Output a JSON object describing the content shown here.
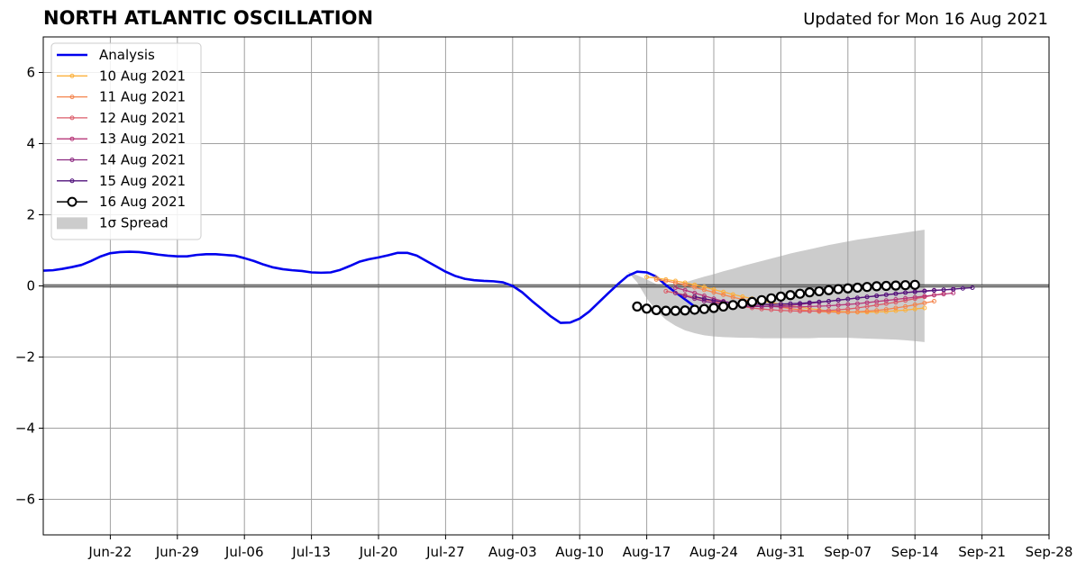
{
  "chart_data": {
    "type": "line",
    "title": "NORTH ATLANTIC OSCILLATION",
    "subtitle": "Updated for Mon 16 Aug 2021",
    "xlabel": "",
    "ylabel": "",
    "x_start": "2021-06-15",
    "x_end": "2021-09-28",
    "ylim": [
      -7,
      7
    ],
    "yticks": [
      -6,
      -4,
      -2,
      0,
      2,
      4,
      6
    ],
    "ytick_labels": [
      "−6",
      "−4",
      "−2",
      "0",
      "2",
      "4",
      "6"
    ],
    "xticks": [
      "2021-06-22",
      "2021-06-29",
      "2021-07-06",
      "2021-07-13",
      "2021-07-20",
      "2021-07-27",
      "2021-08-03",
      "2021-08-10",
      "2021-08-17",
      "2021-08-24",
      "2021-08-31",
      "2021-09-07",
      "2021-09-14",
      "2021-09-21",
      "2021-09-28"
    ],
    "xtick_labels": [
      "Jun-22",
      "Jun-29",
      "Jul-06",
      "Jul-13",
      "Jul-20",
      "Jul-27",
      "Aug-03",
      "Aug-10",
      "Aug-17",
      "Aug-24",
      "Aug-31",
      "Sep-07",
      "Sep-14",
      "Sep-21",
      "Sep-28"
    ],
    "grid": true,
    "legend_position": "top-left",
    "analysis": {
      "name": "Analysis",
      "color": "#0000ee",
      "points": [
        [
          "2021-06-15",
          0.43
        ],
        [
          "2021-06-16",
          0.44
        ],
        [
          "2021-06-17",
          0.48
        ],
        [
          "2021-06-18",
          0.53
        ],
        [
          "2021-06-19",
          0.59
        ],
        [
          "2021-06-20",
          0.7
        ],
        [
          "2021-06-21",
          0.83
        ],
        [
          "2021-06-22",
          0.92
        ],
        [
          "2021-06-23",
          0.95
        ],
        [
          "2021-06-24",
          0.96
        ],
        [
          "2021-06-25",
          0.95
        ],
        [
          "2021-06-26",
          0.92
        ],
        [
          "2021-06-27",
          0.88
        ],
        [
          "2021-06-28",
          0.85
        ],
        [
          "2021-06-29",
          0.83
        ],
        [
          "2021-06-30",
          0.83
        ],
        [
          "2021-07-01",
          0.87
        ],
        [
          "2021-07-02",
          0.89
        ],
        [
          "2021-07-03",
          0.89
        ],
        [
          "2021-07-04",
          0.87
        ],
        [
          "2021-07-05",
          0.85
        ],
        [
          "2021-07-06",
          0.78
        ],
        [
          "2021-07-07",
          0.7
        ],
        [
          "2021-07-08",
          0.6
        ],
        [
          "2021-07-09",
          0.52
        ],
        [
          "2021-07-10",
          0.47
        ],
        [
          "2021-07-11",
          0.44
        ],
        [
          "2021-07-12",
          0.42
        ],
        [
          "2021-07-13",
          0.38
        ],
        [
          "2021-07-14",
          0.37
        ],
        [
          "2021-07-15",
          0.38
        ],
        [
          "2021-07-16",
          0.45
        ],
        [
          "2021-07-17",
          0.56
        ],
        [
          "2021-07-18",
          0.68
        ],
        [
          "2021-07-19",
          0.75
        ],
        [
          "2021-07-20",
          0.8
        ],
        [
          "2021-07-21",
          0.86
        ],
        [
          "2021-07-22",
          0.93
        ],
        [
          "2021-07-23",
          0.93
        ],
        [
          "2021-07-24",
          0.85
        ],
        [
          "2021-07-25",
          0.7
        ],
        [
          "2021-07-26",
          0.55
        ],
        [
          "2021-07-27",
          0.4
        ],
        [
          "2021-07-28",
          0.28
        ],
        [
          "2021-07-29",
          0.2
        ],
        [
          "2021-07-30",
          0.16
        ],
        [
          "2021-07-31",
          0.14
        ],
        [
          "2021-08-01",
          0.13
        ],
        [
          "2021-08-02",
          0.1
        ],
        [
          "2021-08-03",
          0.0
        ],
        [
          "2021-08-04",
          -0.18
        ],
        [
          "2021-08-05",
          -0.42
        ],
        [
          "2021-08-06",
          -0.64
        ],
        [
          "2021-08-07",
          -0.86
        ],
        [
          "2021-08-08",
          -1.04
        ],
        [
          "2021-08-09",
          -1.03
        ],
        [
          "2021-08-10",
          -0.92
        ],
        [
          "2021-08-11",
          -0.72
        ],
        [
          "2021-08-12",
          -0.46
        ],
        [
          "2021-08-13",
          -0.2
        ],
        [
          "2021-08-14",
          0.05
        ],
        [
          "2021-08-15",
          0.28
        ],
        [
          "2021-08-16",
          0.4
        ],
        [
          "2021-08-17",
          0.38
        ],
        [
          "2021-08-18",
          0.26
        ],
        [
          "2021-08-19",
          0.02
        ],
        [
          "2021-08-20",
          -0.18
        ],
        [
          "2021-08-21",
          -0.38
        ],
        [
          "2021-08-22",
          -0.58
        ],
        [
          "2021-08-23",
          -0.75
        ]
      ]
    },
    "forecasts": [
      {
        "name": "10 Aug 2021",
        "color": "#fcb13c",
        "start": "2021-08-17",
        "values": [
          0.25,
          0.22,
          0.18,
          0.14,
          0.09,
          0.03,
          -0.03,
          -0.1,
          -0.17,
          -0.24,
          -0.3,
          -0.36,
          -0.42,
          -0.47,
          -0.52,
          -0.56,
          -0.6,
          -0.64,
          -0.67,
          -0.7,
          -0.72,
          -0.73,
          -0.74,
          -0.74,
          -0.73,
          -0.72,
          -0.7,
          -0.68,
          -0.65,
          -0.62
        ]
      },
      {
        "name": "11 Aug 2021",
        "color": "#f4844c",
        "start": "2021-08-18",
        "values": [
          0.18,
          0.14,
          0.09,
          0.03,
          -0.04,
          -0.11,
          -0.18,
          -0.25,
          -0.32,
          -0.38,
          -0.44,
          -0.5,
          -0.55,
          -0.6,
          -0.64,
          -0.67,
          -0.7,
          -0.72,
          -0.73,
          -0.74,
          -0.74,
          -0.73,
          -0.71,
          -0.69,
          -0.66,
          -0.62,
          -0.58,
          -0.53,
          -0.48,
          -0.43
        ]
      },
      {
        "name": "12 Aug 2021",
        "color": "#db5b68",
        "start": "2021-08-19",
        "values": [
          -0.15,
          -0.2,
          -0.26,
          -0.32,
          -0.38,
          -0.44,
          -0.49,
          -0.54,
          -0.58,
          -0.62,
          -0.65,
          -0.67,
          -0.69,
          -0.7,
          -0.71,
          -0.71,
          -0.7,
          -0.69,
          -0.67,
          -0.65,
          -0.62,
          -0.58,
          -0.54,
          -0.5,
          -0.46,
          -0.41,
          -0.36,
          -0.31,
          -0.26,
          -0.22
        ]
      },
      {
        "name": "13 Aug 2021",
        "color": "#b73779",
        "start": "2021-08-20",
        "values": [
          -0.05,
          -0.12,
          -0.2,
          -0.28,
          -0.36,
          -0.43,
          -0.48,
          -0.52,
          -0.55,
          -0.57,
          -0.58,
          -0.59,
          -0.59,
          -0.59,
          -0.58,
          -0.57,
          -0.56,
          -0.54,
          -0.52,
          -0.5,
          -0.47,
          -0.44,
          -0.41,
          -0.38,
          -0.35,
          -0.32,
          -0.29,
          -0.26,
          -0.23,
          -0.2
        ]
      },
      {
        "name": "14 Aug 2021",
        "color": "#8c2981",
        "start": "2021-08-20",
        "values": [
          -0.2,
          -0.28,
          -0.36,
          -0.43,
          -0.48,
          -0.52,
          -0.55,
          -0.57,
          -0.58,
          -0.58,
          -0.57,
          -0.56,
          -0.54,
          -0.52,
          -0.49,
          -0.46,
          -0.43,
          -0.4,
          -0.37,
          -0.34,
          -0.31,
          -0.28,
          -0.25,
          -0.22,
          -0.19,
          -0.16,
          -0.14,
          -0.12,
          -0.11,
          -0.1
        ]
      },
      {
        "name": "15 Aug 2021",
        "color": "#51127c",
        "start": "2021-08-22",
        "values": [
          -0.3,
          -0.36,
          -0.41,
          -0.45,
          -0.48,
          -0.5,
          -0.51,
          -0.52,
          -0.52,
          -0.51,
          -0.5,
          -0.49,
          -0.47,
          -0.45,
          -0.43,
          -0.4,
          -0.37,
          -0.34,
          -0.31,
          -0.28,
          -0.25,
          -0.22,
          -0.19,
          -0.17,
          -0.15,
          -0.13,
          -0.11,
          -0.09,
          -0.07,
          -0.05
        ]
      }
    ],
    "current_forecast": {
      "name": "16 Aug 2021",
      "color": "#000000",
      "start": "2021-08-16",
      "values": [
        -0.58,
        -0.64,
        -0.68,
        -0.7,
        -0.7,
        -0.69,
        -0.67,
        -0.65,
        -0.62,
        -0.58,
        -0.54,
        -0.5,
        -0.45,
        -0.4,
        -0.35,
        -0.3,
        -0.26,
        -0.22,
        -0.18,
        -0.15,
        -0.12,
        -0.09,
        -0.07,
        -0.05,
        -0.03,
        -0.01,
        0.0,
        0.01,
        0.02,
        0.03
      ]
    },
    "spread": {
      "name": "1σ Spread",
      "color": "#cccccc",
      "start": "2021-08-15",
      "upper": [
        0.4,
        0.3,
        0.18,
        0.05,
        -0.02,
        0.05,
        0.1,
        0.18,
        0.26,
        0.33,
        0.41,
        0.48,
        0.56,
        0.63,
        0.7,
        0.77,
        0.84,
        0.91,
        0.97,
        1.03,
        1.09,
        1.15,
        1.2,
        1.25,
        1.3,
        1.34,
        1.38,
        1.42,
        1.46,
        1.5,
        1.54,
        1.58
      ],
      "lower": [
        0.4,
        0.1,
        -0.35,
        -0.7,
        -0.95,
        -1.12,
        -1.25,
        -1.33,
        -1.39,
        -1.42,
        -1.44,
        -1.45,
        -1.46,
        -1.46,
        -1.47,
        -1.47,
        -1.47,
        -1.47,
        -1.47,
        -1.47,
        -1.46,
        -1.46,
        -1.46,
        -1.46,
        -1.47,
        -1.48,
        -1.49,
        -1.5,
        -1.51,
        -1.53,
        -1.55,
        -1.58
      ]
    }
  }
}
